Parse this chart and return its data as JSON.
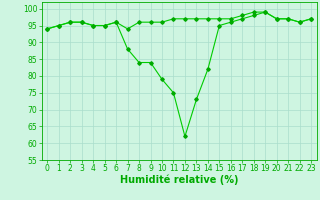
{
  "line1": {
    "x": [
      0,
      1,
      2,
      3,
      4,
      5,
      6,
      7,
      8,
      9,
      10,
      11,
      12,
      13,
      14,
      15,
      16,
      17,
      18,
      19,
      20,
      21,
      22,
      23
    ],
    "y": [
      94,
      95,
      96,
      96,
      95,
      95,
      96,
      94,
      96,
      96,
      96,
      97,
      97,
      97,
      97,
      97,
      97,
      98,
      99,
      99,
      97,
      97,
      96,
      97
    ]
  },
  "line2": {
    "x": [
      0,
      1,
      2,
      3,
      4,
      5,
      6,
      7,
      8,
      9,
      10,
      11,
      12,
      13,
      14,
      15,
      16,
      17,
      18,
      19,
      20,
      21,
      22,
      23
    ],
    "y": [
      94,
      95,
      96,
      96,
      95,
      95,
      96,
      88,
      84,
      84,
      79,
      75,
      62,
      73,
      82,
      95,
      96,
      97,
      98,
      99,
      97,
      97,
      96,
      97
    ]
  },
  "line_color": "#00cc00",
  "marker_color": "#00aa00",
  "bg_color": "#cef5e1",
  "grid_color": "#aaddcc",
  "axis_color": "#00aa00",
  "xlabel": "Humidité relative (%)",
  "xlim": [
    -0.5,
    23.5
  ],
  "ylim": [
    55,
    102
  ],
  "yticks": [
    55,
    60,
    65,
    70,
    75,
    80,
    85,
    90,
    95,
    100
  ],
  "xticks": [
    0,
    1,
    2,
    3,
    4,
    5,
    6,
    7,
    8,
    9,
    10,
    11,
    12,
    13,
    14,
    15,
    16,
    17,
    18,
    19,
    20,
    21,
    22,
    23
  ],
  "tick_fontsize": 5.5,
  "label_fontsize": 7.0
}
